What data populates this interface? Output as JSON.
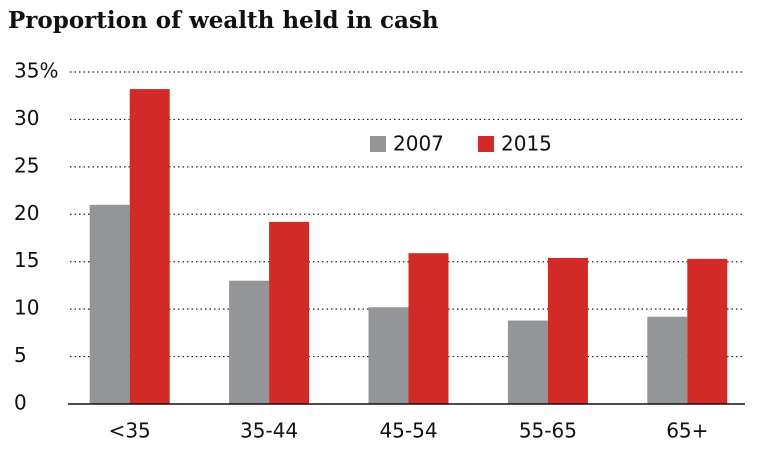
{
  "chart_data": {
    "type": "bar",
    "title": "Proportion of wealth held in cash",
    "categories": [
      "<35",
      "35-44",
      "45-54",
      "55-65",
      "65+"
    ],
    "series": [
      {
        "name": "2007",
        "color": "#939598",
        "values": [
          21,
          13,
          10.2,
          8.8,
          9.2
        ]
      },
      {
        "name": "2015",
        "color": "#d22b27",
        "values": [
          33.2,
          19.2,
          15.9,
          15.4,
          15.3
        ]
      }
    ],
    "ylim": [
      0,
      35
    ],
    "yticks": [
      0,
      5,
      10,
      15,
      20,
      25,
      30,
      {
        "value": 35,
        "label": "35%"
      }
    ],
    "grid": true
  }
}
